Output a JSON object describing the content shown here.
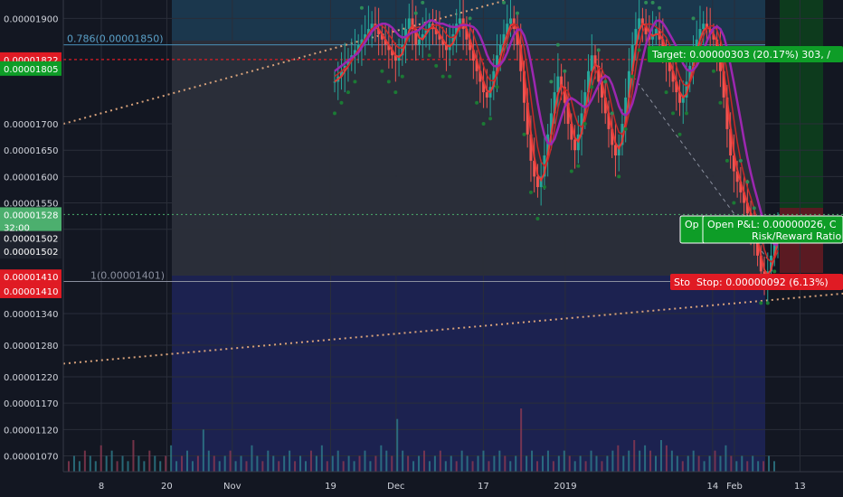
{
  "chart_data": {
    "type": "candlestick",
    "title": "",
    "xlabel": "",
    "ylabel": "",
    "ylim": [
      1.04e-05,
      1.935e-05
    ],
    "y_ticks": [
      "0.00001900",
      "0.00001700",
      "0.00001650",
      "0.00001600",
      "0.00001550",
      "0.00001500",
      "0.00001340",
      "0.00001280",
      "0.00001220",
      "0.00001170",
      "0.00001120",
      "0.00001070"
    ],
    "x_ticks": [
      {
        "label": "8",
        "t": 8
      },
      {
        "label": "20",
        "t": 20
      },
      {
        "label": "Nov",
        "t": 32
      },
      {
        "label": "19",
        "t": 50
      },
      {
        "label": "Dec",
        "t": 62
      },
      {
        "label": "17",
        "t": 78
      },
      {
        "label": "2019",
        "t": 93
      },
      {
        "label": "14",
        "t": 120
      },
      {
        "label": "Feb",
        "t": 124
      },
      {
        "label": "13",
        "t": 136
      }
    ],
    "fib_levels": [
      {
        "label": "0.786(0.00001850)",
        "price": 1.85e-05
      },
      {
        "label": "1(0.00001401)",
        "price": 1.401e-05
      }
    ],
    "price_badges": [
      {
        "text": "0.00001822",
        "price": 1.822e-05,
        "color": "#e01b24"
      },
      {
        "text": "0.00001805",
        "price": 1.805e-05,
        "color": "#0e9d27"
      },
      {
        "text": "0.00001528",
        "price": 1.528e-05,
        "color": "#4caf6e"
      },
      {
        "text": "32:00",
        "price": 1.504e-05,
        "color": "#4caf6e"
      },
      {
        "text": "0.00001502",
        "price": 1.483e-05,
        "color": "#1e222d"
      },
      {
        "text": "0.00001502",
        "price": 1.458e-05,
        "color": "#1e222d"
      },
      {
        "text": "0.00001410",
        "price": 1.41e-05,
        "color": "#e01b24"
      },
      {
        "text": "0.00001410",
        "price": 1.383e-05,
        "color": "#e01b24"
      }
    ],
    "position": {
      "target_label": "Target: 0.00000303 (20.17%) 303, /",
      "pnl_short": "Op",
      "pnl_label": "Open P&L: 0.00000026, C",
      "rr_label": "Risk/Reward Ratio",
      "stop_short": "Sto",
      "stop_label": "Stop: 0.00000092 (6.13%)"
    },
    "series": [
      {
        "name": "",
        "values": [
          1.78e-05,
          1.79e-05,
          1.8e-05,
          1.81e-05,
          1.82e-05,
          1.83e-05,
          1.84e-05,
          1.85e-05,
          1.86e-05,
          1.87e-05,
          1.88e-05,
          1.89e-05,
          1.88e-05,
          1.87e-05,
          1.86e-05,
          1.85e-05,
          1.84e-05,
          1.83e-05,
          1.82e-05,
          1.83e-05,
          1.85e-05,
          1.88e-05,
          1.9e-05,
          1.88e-05,
          1.85e-05,
          1.86e-05,
          1.87e-05,
          1.88e-05,
          1.89e-05,
          1.88e-05,
          1.87e-05,
          1.86e-05,
          1.85e-05,
          1.84e-05,
          1.85e-05,
          1.87e-05,
          1.89e-05,
          1.9e-05,
          1.88e-05,
          1.86e-05,
          1.84e-05,
          1.82e-05,
          1.8e-05,
          1.78e-05,
          1.76e-05,
          1.75e-05,
          1.77e-05,
          1.8e-05,
          1.83e-05,
          1.85e-05,
          1.87e-05,
          1.89e-05,
          1.9e-05,
          1.88e-05,
          1.85e-05,
          1.8e-05,
          1.74e-05,
          1.68e-05,
          1.63e-05,
          1.6e-05,
          1.58e-05,
          1.6e-05,
          1.64e-05,
          1.68e-05,
          1.72e-05,
          1.76e-05,
          1.79e-05,
          1.77e-05,
          1.74e-05,
          1.7e-05,
          1.67e-05,
          1.65e-05,
          1.68e-05,
          1.72e-05,
          1.76e-05,
          1.8e-05,
          1.83e-05,
          1.81e-05,
          1.78e-05,
          1.75e-05,
          1.72e-05,
          1.69e-05,
          1.66e-05,
          1.64e-05,
          1.66e-05,
          1.7e-05,
          1.75e-05,
          1.8e-05,
          1.85e-05,
          1.88e-05,
          1.9e-05,
          1.89e-05,
          1.87e-05,
          1.86e-05,
          1.87e-05,
          1.88e-05,
          1.86e-05,
          1.84e-05,
          1.82e-05,
          1.8e-05,
          1.78e-05,
          1.76e-05,
          1.74e-05,
          1.75e-05,
          1.78e-05,
          1.81e-05,
          1.84e-05,
          1.86e-05,
          1.88e-05,
          1.89e-05,
          1.88e-05,
          1.87e-05,
          1.86e-05,
          1.84e-05,
          1.8e-05,
          1.75e-05,
          1.69e-05,
          1.64e-05,
          1.61e-05,
          1.59e-05,
          1.57e-05,
          1.55e-05,
          1.53e-05,
          1.51e-05,
          1.48e-05,
          1.45e-05,
          1.42e-05,
          1.4e-05,
          1.42e-05,
          1.45e-05,
          1.48e-05,
          1.5e-05
        ]
      }
    ],
    "volume": [
      2,
      3,
      2,
      4,
      3,
      2,
      5,
      3,
      4,
      2,
      3,
      2,
      6,
      3,
      2,
      4,
      3,
      2,
      3,
      5,
      2,
      3,
      4,
      2,
      3,
      8,
      4,
      3,
      2,
      3,
      4,
      2,
      3,
      2,
      5,
      3,
      2,
      4,
      3,
      2,
      3,
      4,
      2,
      3,
      2,
      4,
      3,
      5,
      2,
      3,
      4,
      2,
      3,
      2,
      3,
      4,
      2,
      3,
      5,
      4,
      3,
      10,
      4,
      3,
      2,
      3,
      4,
      2,
      3,
      4,
      2,
      3,
      2,
      4,
      3,
      2,
      3,
      4,
      2,
      3,
      4,
      3,
      2,
      3,
      12,
      3,
      4,
      2,
      3,
      4,
      2,
      3,
      4,
      3,
      2,
      3,
      2,
      4,
      3,
      2,
      3,
      4,
      5,
      3,
      4,
      6,
      4,
      5,
      4,
      3,
      6,
      5,
      4,
      3,
      2,
      3,
      4,
      3,
      2,
      3,
      4,
      3,
      5,
      3,
      2,
      3,
      2,
      3,
      2,
      2,
      3,
      2
    ]
  }
}
